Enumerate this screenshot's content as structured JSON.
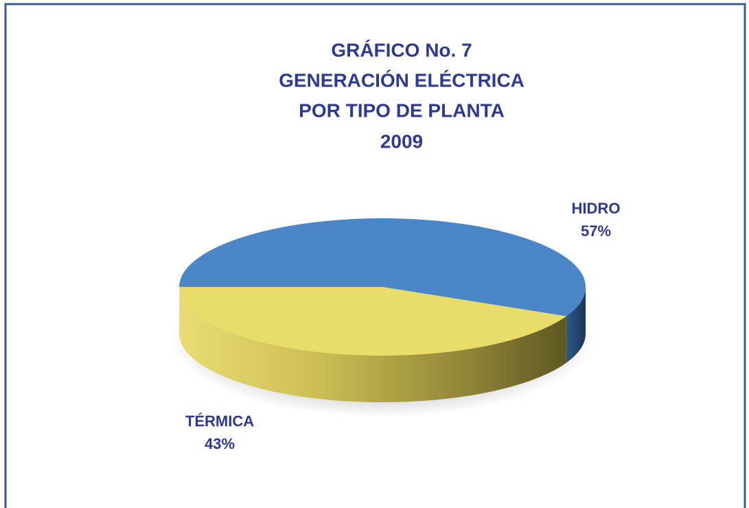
{
  "chart_data": {
    "type": "pie3d",
    "title": [
      "GRÁFICO  No.  7",
      "GENERACIÓN ELÉCTRICA",
      "POR TIPO DE PLANTA",
      "2009"
    ],
    "categories": [
      "HIDRO",
      "TÉRMICA"
    ],
    "values": [
      57,
      43
    ],
    "value_labels": [
      "57%",
      "43%"
    ],
    "colors": [
      "#4a86c8",
      "#e8dc6a"
    ]
  }
}
